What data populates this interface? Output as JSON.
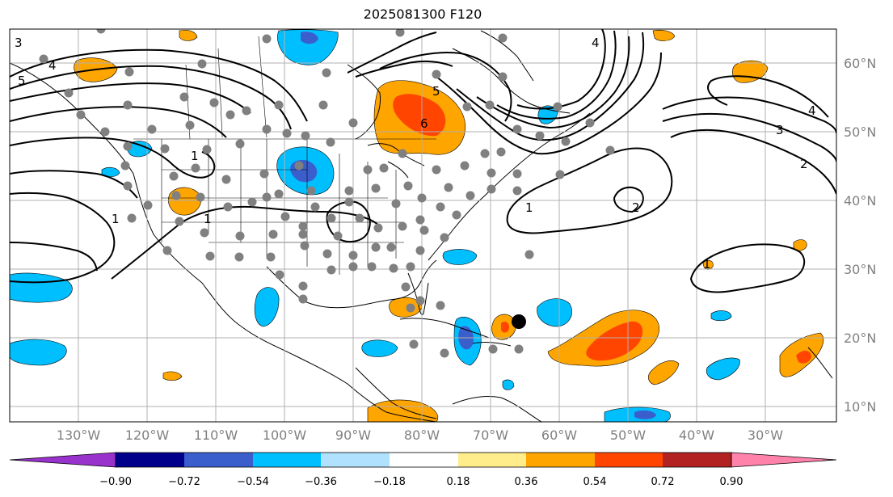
{
  "title": "2025081300 F120",
  "longitude_labels": [
    "130°W",
    "120°W",
    "110°W",
    "100°W",
    "90°W",
    "80°W",
    "70°W",
    "60°W",
    "50°W",
    "40°W",
    "30°W"
  ],
  "latitude_labels": [
    "60°N",
    "50°N",
    "40°N",
    "30°N",
    "20°N",
    "10°N"
  ],
  "colorbar": {
    "tick_labels": [
      "−0.90",
      "−0.72",
      "−0.54",
      "−0.36",
      "−0.18",
      "0.18",
      "0.36",
      "0.54",
      "0.72",
      "0.90"
    ],
    "colors": [
      "#9932cc",
      "#00008b",
      "#3a5fcd",
      "#00bfff",
      "#b0e2ff",
      "#ffffff",
      "#ffec8b",
      "#ffa500",
      "#ff4500",
      "#b22222",
      "#ff82ab"
    ],
    "extend": "both"
  },
  "contour_labels": [
    "3",
    "4",
    "5",
    "1",
    "1",
    "1",
    "1",
    "2",
    "2",
    "3",
    "4",
    "1",
    "4",
    "5",
    "6"
  ],
  "colors": {
    "map_border": "#000000",
    "gridline": "#b0b0b0",
    "station_dot": "#808080",
    "storm_marker": "#000000"
  }
}
